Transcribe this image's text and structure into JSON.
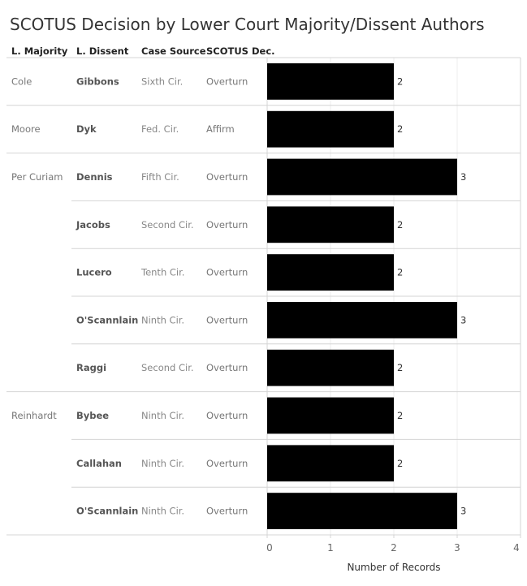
{
  "chart_data": {
    "type": "bar",
    "orientation": "horizontal",
    "title": "SCOTUS Decision by Lower Court Majority/Dissent Authors",
    "column_headers": [
      "L. Majority",
      "L. Dissent",
      "Case Source",
      "SCOTUS Dec."
    ],
    "rows": [
      {
        "majority": "Cole",
        "dissent": "Gibbons",
        "source": "Sixth Cir.",
        "decision": "Overturn",
        "value": 2
      },
      {
        "majority": "Moore",
        "dissent": "Dyk",
        "source": "Fed. Cir.",
        "decision": "Affirm",
        "value": 2
      },
      {
        "majority": "Per Curiam",
        "dissent": "Dennis",
        "source": "Fifth Cir.",
        "decision": "Overturn",
        "value": 3
      },
      {
        "majority": "",
        "dissent": "Jacobs",
        "source": "Second Cir.",
        "decision": "Overturn",
        "value": 2
      },
      {
        "majority": "",
        "dissent": "Lucero",
        "source": "Tenth Cir.",
        "decision": "Overturn",
        "value": 2
      },
      {
        "majority": "",
        "dissent": "O'Scannlain",
        "source": "Ninth Cir.",
        "decision": "Overturn",
        "value": 3
      },
      {
        "majority": "",
        "dissent": "Raggi",
        "source": "Second Cir.",
        "decision": "Overturn",
        "value": 2
      },
      {
        "majority": "Reinhardt",
        "dissent": "Bybee",
        "source": "Ninth Cir.",
        "decision": "Overturn",
        "value": 2
      },
      {
        "majority": "",
        "dissent": "Callahan",
        "source": "Ninth Cir.",
        "decision": "Overturn",
        "value": 2
      },
      {
        "majority": "",
        "dissent": "O'Scannlain",
        "source": "Ninth Cir.",
        "decision": "Overturn",
        "value": 3
      }
    ],
    "xlabel": "Number of Records",
    "xlim": [
      0,
      4
    ],
    "xticks": [
      "0",
      "1",
      "2",
      "3",
      "4"
    ],
    "grid": true,
    "bar_color": "#000000"
  }
}
